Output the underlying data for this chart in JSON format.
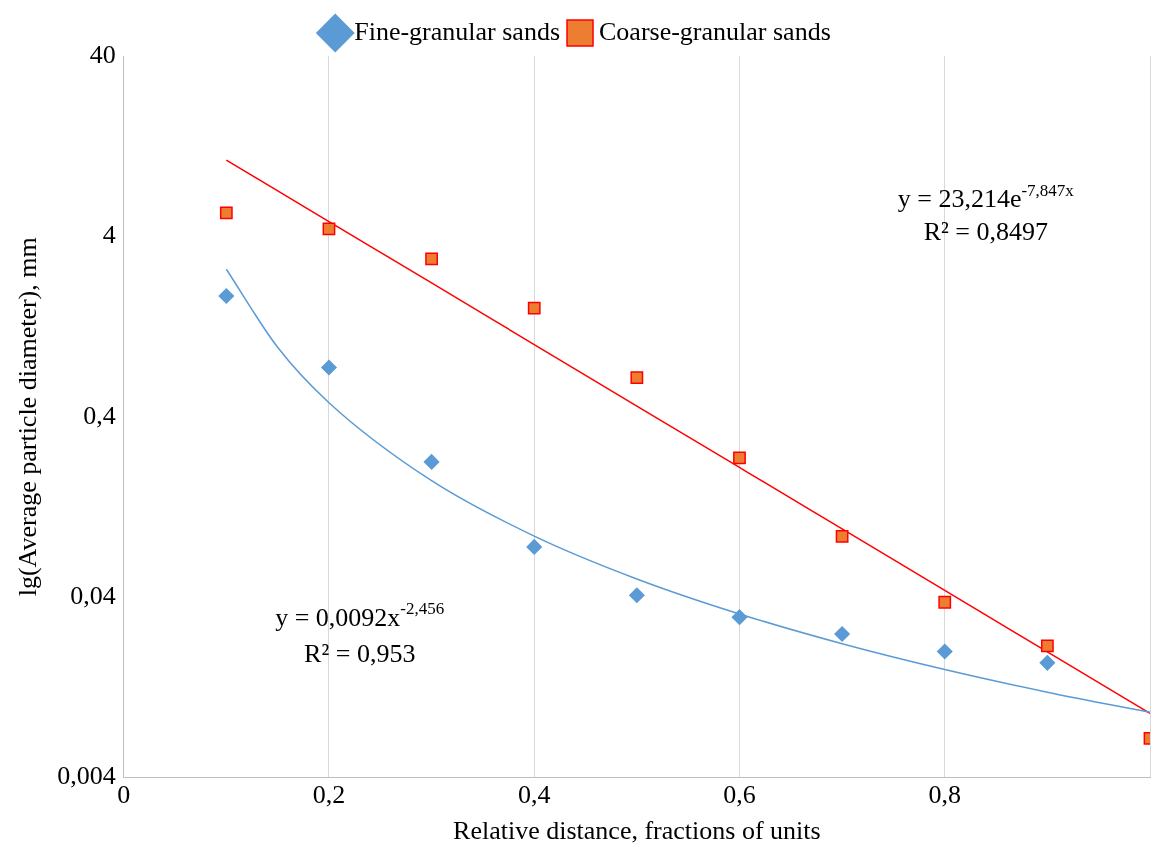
{
  "chart_data": {
    "type": "scatter",
    "xlabel": "Relative distance, fractions of units",
    "ylabel": "lg(Average particle diameter), mm",
    "xlim": [
      0,
      1
    ],
    "xticks": [
      0,
      {
        "value": 0.2,
        "label": "0,2"
      },
      {
        "value": 0.4,
        "label": "0,4"
      },
      {
        "value": 0.6,
        "label": "0,6"
      },
      {
        "value": 0.8,
        "label": "0,8"
      },
      {
        "value": 1,
        "label": null
      }
    ],
    "ylim": [
      0.004,
      40
    ],
    "yticks": [
      {
        "value": 0.004,
        "label": "0,004"
      },
      {
        "value": 0.04,
        "label": "0,04"
      },
      {
        "value": 0.4,
        "label": "0,4"
      },
      4,
      40
    ],
    "log": "y",
    "grid": "x",
    "legend": "top",
    "series": [
      {
        "name": "Fine-granular sands",
        "type": "scatter",
        "marker": "diamond",
        "color": "#5b9bd5",
        "x": [
          0.1,
          0.2,
          0.3,
          0.4,
          0.5,
          0.6,
          0.7,
          0.8,
          0.9
        ],
        "values": [
          1.87,
          0.75,
          0.225,
          0.076,
          0.041,
          0.031,
          0.025,
          0.02,
          0.0173
        ]
      },
      {
        "name": "Coarse-granular sands",
        "type": "scatter",
        "marker": "square",
        "color": "#ed7d31",
        "x": [
          0.1,
          0.2,
          0.3,
          0.4,
          0.5,
          0.6,
          0.7,
          0.8,
          0.9,
          1
        ],
        "values": [
          5.4,
          4.4,
          3.0,
          1.6,
          0.66,
          0.237,
          0.087,
          0.0375,
          0.0215,
          0.0066
        ]
      },
      {
        "type": "line",
        "marker": "none",
        "color": "#5b9bd5",
        "x": [
          0.1,
          0.15,
          0.2,
          0.3,
          0.4,
          0.5,
          0.6,
          0.7,
          0.8,
          0.9,
          1
        ],
        "values": [
          2.63,
          0.971,
          0.479,
          0.177,
          0.0873,
          0.0505,
          0.0323,
          0.0221,
          0.0159,
          0.0119,
          0.0092
        ]
      },
      {
        "type": "line",
        "marker": "none",
        "color": "#ff0000",
        "x": [
          0.1,
          0.2,
          0.3,
          0.4,
          0.5,
          0.6,
          0.7,
          0.8,
          0.9,
          1
        ],
        "values": [
          10.59,
          4.83,
          2.21,
          1.006,
          0.459,
          0.2095,
          0.0956,
          0.0436,
          0.0199,
          0.00908
        ]
      }
    ],
    "annotations": [
      "y = 23,214e$^{-7,847x}$",
      "R² = 0,8497",
      "y = 0,0092x$^{-2,456}$",
      "R² = 0,953"
    ]
  }
}
